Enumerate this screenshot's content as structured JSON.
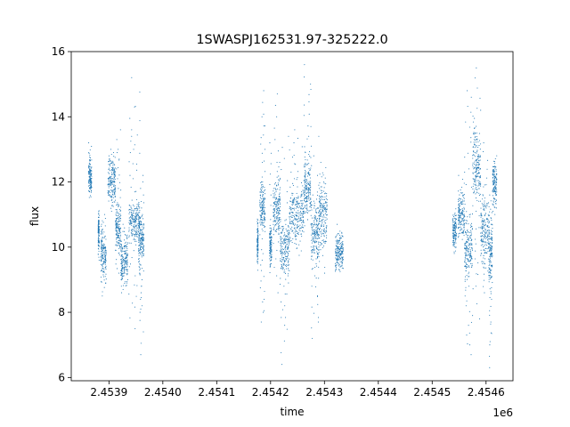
{
  "chart_data": {
    "type": "scatter",
    "title": "1SWASPJ162531.97-325222.0",
    "xlabel": "time",
    "ylabel": "flux",
    "x_offset_label": "1e6",
    "xlim": [
      2.45383,
      2.45465
    ],
    "ylim": [
      5.9,
      16.0
    ],
    "x_ticks": [
      2.4539,
      2.454,
      2.4541,
      2.4542,
      2.4543,
      2.4544,
      2.4545,
      2.4546
    ],
    "x_tick_labels": [
      "2.4539",
      "2.4540",
      "2.4541",
      "2.4542",
      "2.4543",
      "2.4544",
      "2.4545",
      "2.4546"
    ],
    "y_ticks": [
      6,
      8,
      10,
      12,
      14,
      16
    ],
    "y_tick_labels": [
      "6",
      "8",
      "10",
      "12",
      "14",
      "16"
    ],
    "grid": false,
    "legend": "none",
    "marker_color": "#1f77b4",
    "segments": [
      {
        "x": [
          2.453862,
          2.453868
        ],
        "y_center": 12.1,
        "y_spread": 0.25,
        "outliers": [
          12.9,
          13.2
        ]
      },
      {
        "x": [
          2.45388,
          2.453882
        ],
        "y_center": 10.5,
        "y_spread": 0.25,
        "outliers": [
          9.6
        ]
      },
      {
        "x": [
          2.453885,
          2.453895
        ],
        "y_center": 9.8,
        "y_spread": 0.35,
        "outliers": [
          8.5,
          8.9,
          11.0
        ]
      },
      {
        "x": [
          2.453898,
          2.453912
        ],
        "y_center": 12.0,
        "y_spread": 0.35,
        "outliers": [
          13.0,
          11.1
        ]
      },
      {
        "x": [
          2.453912,
          2.453922
        ],
        "y_center": 10.6,
        "y_spread": 0.35,
        "outliers": [
          12.9,
          13.6,
          9.2
        ]
      },
      {
        "x": [
          2.453922,
          2.453935
        ],
        "y_center": 9.6,
        "y_spread": 0.35,
        "outliers": [
          8.6,
          10.7
        ]
      },
      {
        "x": [
          2.453937,
          2.453958
        ],
        "y_center": 10.8,
        "y_spread": 0.35,
        "outliers": [
          14.3,
          15.2,
          13.4,
          8.0,
          7.5
        ]
      },
      {
        "x": [
          2.453955,
          2.453965
        ],
        "y_center": 10.2,
        "y_spread": 0.4,
        "outliers": [
          12.2,
          8.2,
          6.7
        ]
      },
      {
        "x": [
          2.454175,
          2.454177
        ],
        "y_center": 10.2,
        "y_spread": 0.3,
        "outliers": []
      },
      {
        "x": [
          2.45418,
          2.45419
        ],
        "y_center": 11.2,
        "y_spread": 0.4,
        "outliers": [
          14.0,
          14.8,
          8.0,
          7.7
        ]
      },
      {
        "x": [
          2.454198,
          2.454202
        ],
        "y_center": 10.0,
        "y_spread": 0.3,
        "outliers": [
          13.2
        ]
      },
      {
        "x": [
          2.454205,
          2.454218
        ],
        "y_center": 11.2,
        "y_spread": 0.4,
        "outliers": [
          14.7,
          12.6,
          8.6
        ]
      },
      {
        "x": [
          2.454218,
          2.454235
        ],
        "y_center": 10.0,
        "y_spread": 0.4,
        "outliers": [
          13.4,
          6.4,
          7.6,
          8.9
        ]
      },
      {
        "x": [
          2.454235,
          2.454262
        ],
        "y_center": 11.0,
        "y_spread": 0.45,
        "outliers": [
          13.2,
          13.6
        ]
      },
      {
        "x": [
          2.454262,
          2.454275
        ],
        "y_center": 11.8,
        "y_spread": 0.5,
        "outliers": [
          15.6,
          15.0,
          12.9
        ]
      },
      {
        "x": [
          2.454275,
          2.45429
        ],
        "y_center": 10.4,
        "y_spread": 0.45,
        "outliers": [
          13.4,
          7.2,
          7.7
        ]
      },
      {
        "x": [
          2.45429,
          2.454305
        ],
        "y_center": 11.0,
        "y_spread": 0.45,
        "outliers": [
          12.6,
          9.2
        ]
      },
      {
        "x": [
          2.45432,
          2.454335
        ],
        "y_center": 9.9,
        "y_spread": 0.3,
        "outliers": [
          9.3
        ]
      },
      {
        "x": [
          2.454538,
          2.454545
        ],
        "y_center": 10.5,
        "y_spread": 0.3,
        "outliers": []
      },
      {
        "x": [
          2.454548,
          2.45456
        ],
        "y_center": 11.0,
        "y_spread": 0.35,
        "outliers": [
          12.2
        ]
      },
      {
        "x": [
          2.45456,
          2.454575
        ],
        "y_center": 10.0,
        "y_spread": 0.45,
        "outliers": [
          14.8,
          14.6,
          7.0,
          6.7
        ]
      },
      {
        "x": [
          2.454575,
          2.45459
        ],
        "y_center": 12.4,
        "y_spread": 0.55,
        "outliers": [
          15.5,
          14.2,
          8.8,
          7.8
        ]
      },
      {
        "x": [
          2.45459,
          2.454605
        ],
        "y_center": 10.5,
        "y_spread": 0.5,
        "outliers": [
          13.2,
          8.6
        ]
      },
      {
        "x": [
          2.454605,
          2.454612
        ],
        "y_center": 9.8,
        "y_spread": 0.6,
        "outliers": [
          6.3,
          7.1,
          11.6
        ]
      },
      {
        "x": [
          2.454612,
          2.45462
        ],
        "y_center": 12.0,
        "y_spread": 0.35,
        "outliers": [
          11.0
        ]
      }
    ]
  }
}
